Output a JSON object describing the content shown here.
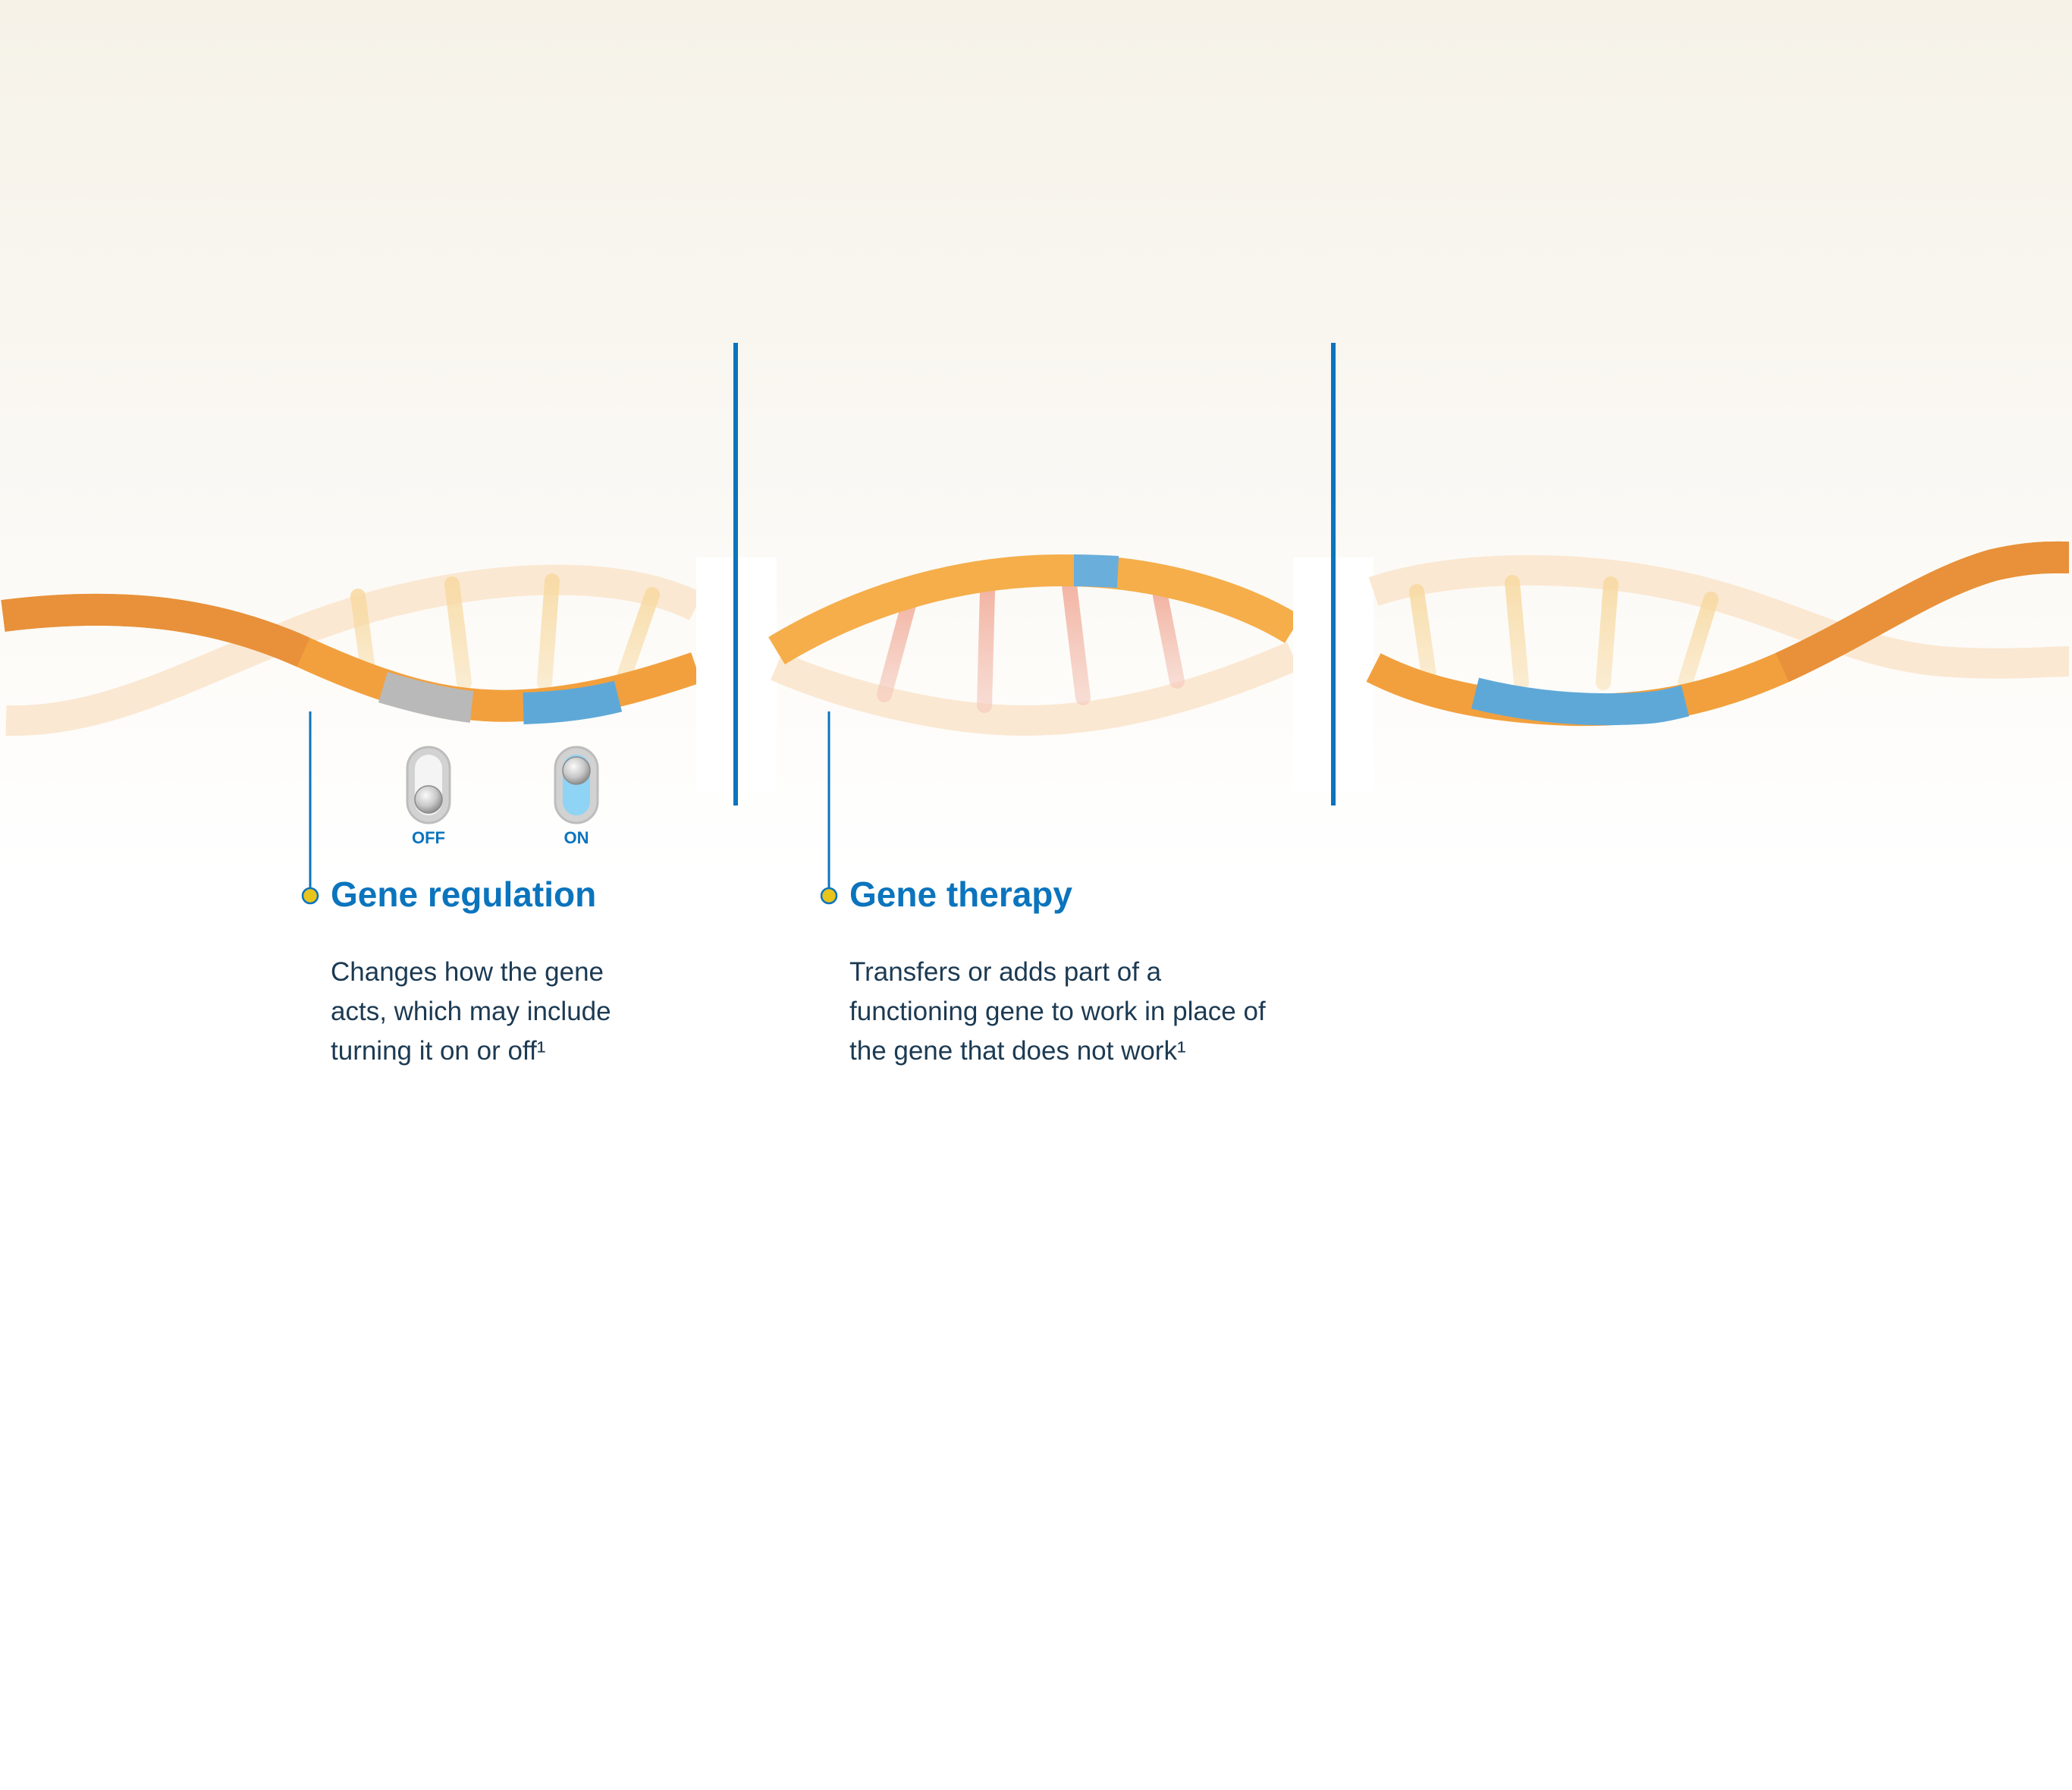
{
  "sections": [
    {
      "title": "Gene regulation",
      "description": "Changes how the gene acts, which may include turning it on or off¹",
      "toggles": [
        {
          "label": "OFF",
          "state": "off"
        },
        {
          "label": "ON",
          "state": "on"
        }
      ]
    },
    {
      "title": "Gene therapy",
      "description": "Transfers or adds part of a functioning gene to work in place of the gene that does not work¹"
    }
  ],
  "colors": {
    "strand_orange": "#f2a03d",
    "strand_dark_orange": "#e8913a",
    "segment_blue": "#5ea8d8",
    "segment_gray": "#b9b9b9",
    "accent_blue": "#0b74bd",
    "callout_dot": "#e8c41c",
    "text_dark": "#1c3a52",
    "toggle_on_fill": "#8fd3f5"
  }
}
